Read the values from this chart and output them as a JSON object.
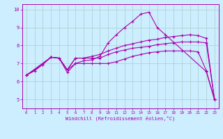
{
  "xlabel": "Windchill (Refroidissement éolien,°C)",
  "xlim": [
    -0.5,
    23.5
  ],
  "ylim": [
    4.5,
    10.3
  ],
  "xticks": [
    0,
    1,
    2,
    3,
    4,
    5,
    6,
    7,
    8,
    9,
    10,
    11,
    12,
    13,
    14,
    15,
    16,
    17,
    18,
    19,
    20,
    21,
    22,
    23
  ],
  "yticks": [
    5,
    6,
    7,
    8,
    9,
    10
  ],
  "bg_color": "#cceeff",
  "line_color": "#aa00aa",
  "grid_color": "#aacccc",
  "series": [
    {
      "x": [
        0,
        1,
        2,
        3,
        4,
        5,
        6,
        7,
        8,
        9,
        10,
        11,
        12,
        13,
        14,
        15,
        16,
        17,
        22,
        23
      ],
      "y": [
        6.35,
        6.6,
        6.95,
        7.35,
        7.3,
        6.65,
        7.0,
        7.15,
        7.2,
        7.4,
        8.15,
        8.6,
        9.0,
        9.35,
        9.75,
        9.85,
        9.0,
        8.6,
        6.55,
        5.0
      ]
    },
    {
      "x": [
        0,
        2,
        3,
        4,
        5,
        6,
        7,
        8,
        9,
        10,
        11,
        12,
        13,
        14,
        15,
        16,
        17,
        18,
        19,
        20,
        21,
        22,
        23
      ],
      "y": [
        6.35,
        6.95,
        7.35,
        7.3,
        6.65,
        7.3,
        7.3,
        7.4,
        7.5,
        7.7,
        7.85,
        8.0,
        8.1,
        8.2,
        8.3,
        8.35,
        8.45,
        8.5,
        8.55,
        8.6,
        8.55,
        8.4,
        5.0
      ]
    },
    {
      "x": [
        0,
        3,
        4,
        5,
        6,
        7,
        8,
        9,
        10,
        11,
        12,
        13,
        14,
        15,
        16,
        17,
        18,
        19,
        20,
        21,
        22,
        23
      ],
      "y": [
        6.35,
        7.35,
        7.3,
        6.65,
        7.3,
        7.3,
        7.3,
        7.3,
        7.5,
        7.65,
        7.75,
        7.85,
        7.9,
        7.95,
        8.05,
        8.1,
        8.15,
        8.2,
        8.2,
        8.2,
        8.15,
        5.0
      ]
    },
    {
      "x": [
        0,
        1,
        2,
        3,
        4,
        5,
        6,
        7,
        8,
        9,
        10,
        11,
        12,
        13,
        14,
        15,
        16,
        17,
        18,
        19,
        20,
        21,
        22,
        23
      ],
      "y": [
        6.35,
        6.6,
        6.95,
        7.35,
        7.3,
        6.5,
        7.0,
        7.0,
        7.0,
        7.0,
        7.0,
        7.1,
        7.25,
        7.4,
        7.5,
        7.6,
        7.65,
        7.7,
        7.7,
        7.7,
        7.7,
        7.65,
        6.6,
        5.0
      ]
    }
  ]
}
